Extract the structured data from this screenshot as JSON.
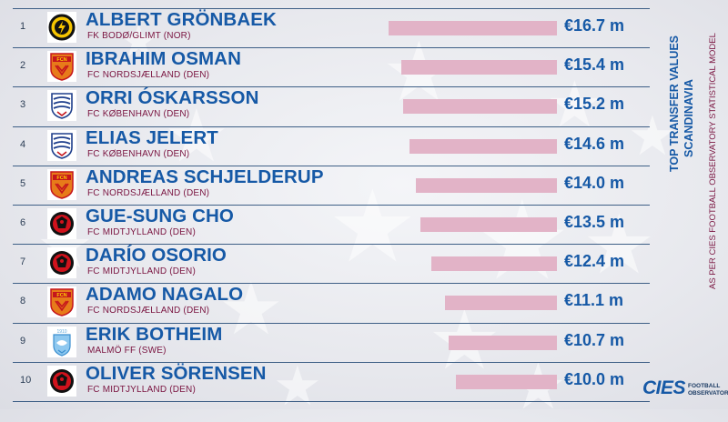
{
  "side_title": {
    "line1": "TOP TRANSFER VALUES",
    "line2": "SCANDINAVIA"
  },
  "side_subtitle": "AS PER CIES FOOTBALL OBSERVATORY STATISTICAL MODEL",
  "brand": {
    "mark": "CIES",
    "text": "FOOTBALL OBSERVATORY"
  },
  "colors": {
    "name": "#1659a6",
    "club": "#7a1440",
    "bar": "#e2b3c7",
    "rule": "#3e5f86"
  },
  "chart_data": {
    "type": "bar",
    "orientation": "horizontal",
    "unit": "€ m",
    "ranks": [
      "1",
      "2",
      "3",
      "4",
      "5",
      "6",
      "7",
      "8",
      "9",
      "10"
    ],
    "categories": [
      "ALBERT GRÖNBAEK",
      "IBRAHIM OSMAN",
      "ORRI ÓSKARSSON",
      "ELIAS JELERT",
      "ANDREAS SCHJELDERUP",
      "GUE-SUNG CHO",
      "DARÍO OSORIO",
      "ADAMO NAGALO",
      "ERIK BOTHEIM",
      "OLIVER SÖRENSEN"
    ],
    "clubs": [
      "FK BODØ/GLIMT (NOR)",
      "FC NORDSJÆLLAND (DEN)",
      "FC KØBENHAVN (DEN)",
      "FC KØBENHAVN (DEN)",
      "FC NORDSJÆLLAND (DEN)",
      "FC MIDTJYLLAND (DEN)",
      "FC MIDTJYLLAND (DEN)",
      "FC NORDSJÆLLAND (DEN)",
      "MALMÖ FF (SWE)",
      "FC MIDTJYLLAND (DEN)"
    ],
    "crests": [
      "bodo-glimt-crest-icon",
      "nordsjaelland-crest-icon",
      "kobenhavn-crest-icon",
      "kobenhavn-crest-icon",
      "nordsjaelland-crest-icon",
      "midtjylland-crest-icon",
      "midtjylland-crest-icon",
      "nordsjaelland-crest-icon",
      "malmo-crest-icon",
      "midtjylland-crest-icon"
    ],
    "values": [
      16.7,
      15.4,
      15.2,
      14.6,
      14.0,
      13.5,
      12.4,
      11.1,
      10.7,
      10.0
    ],
    "value_labels": [
      "€16.7 m",
      "€15.4 m",
      "€15.2 m",
      "€14.6 m",
      "€14.0 m",
      "€13.5 m",
      "€12.4 m",
      "€11.1 m",
      "€10.7 m",
      "€10.0 m"
    ]
  }
}
